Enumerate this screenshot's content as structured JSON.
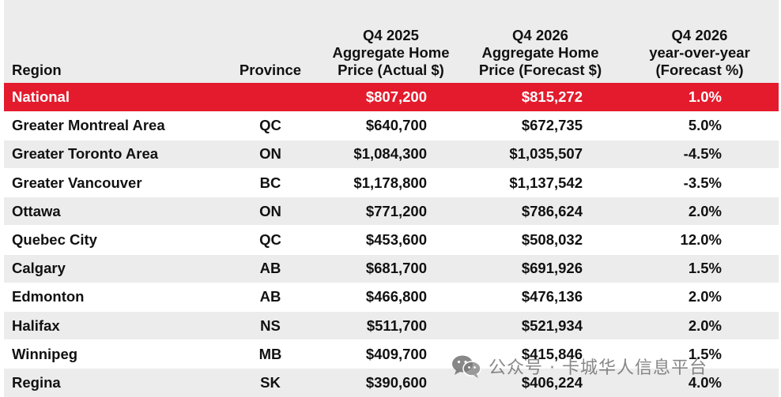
{
  "table": {
    "headers": {
      "region": "Region",
      "province": "Province",
      "q4_2025": "Q4 2025\nAggregate Home\nPrice (Actual $)",
      "q4_2026": "Q4 2026\nAggregate Home\nPrice (Forecast $)",
      "yoy": "Q4 2026\nyear-over-year\n(Forecast %)"
    },
    "rows": [
      {
        "region": "National",
        "province": "",
        "q4_2025": "$807,200",
        "q4_2026": "$815,272",
        "yoy": "1.0%"
      },
      {
        "region": "Greater Montreal Area",
        "province": "QC",
        "q4_2025": "$640,700",
        "q4_2026": "$672,735",
        "yoy": "5.0%"
      },
      {
        "region": "Greater Toronto Area",
        "province": "ON",
        "q4_2025": "$1,084,300",
        "q4_2026": "$1,035,507",
        "yoy": "-4.5%"
      },
      {
        "region": "Greater Vancouver",
        "province": "BC",
        "q4_2025": "$1,178,800",
        "q4_2026": "$1,137,542",
        "yoy": "-3.5%"
      },
      {
        "region": "Ottawa",
        "province": "ON",
        "q4_2025": "$771,200",
        "q4_2026": "$786,624",
        "yoy": "2.0%"
      },
      {
        "region": "Quebec City",
        "province": "QC",
        "q4_2025": "$453,600",
        "q4_2026": "$508,032",
        "yoy": "12.0%"
      },
      {
        "region": "Calgary",
        "province": "AB",
        "q4_2025": "$681,700",
        "q4_2026": "$691,926",
        "yoy": "1.5%"
      },
      {
        "region": "Edmonton",
        "province": "AB",
        "q4_2025": "$466,800",
        "q4_2026": "$476,136",
        "yoy": "2.0%"
      },
      {
        "region": "Halifax",
        "province": "NS",
        "q4_2025": "$511,700",
        "q4_2026": "$521,934",
        "yoy": "2.0%"
      },
      {
        "region": "Winnipeg",
        "province": "MB",
        "q4_2025": "$409,700",
        "q4_2026": "$415,846",
        "yoy": "1.5%"
      },
      {
        "region": "Regina",
        "province": "SK",
        "q4_2025": "$390,600",
        "q4_2026": "$406,224",
        "yoy": "4.0%"
      }
    ]
  },
  "watermark": {
    "text": "公众号 · 卡城华人信息平台",
    "icon": "wechat-icon"
  },
  "colors": {
    "national_row": "#e31b2c",
    "header_bg": "#ececec",
    "stripe_bg": "#ececec"
  }
}
